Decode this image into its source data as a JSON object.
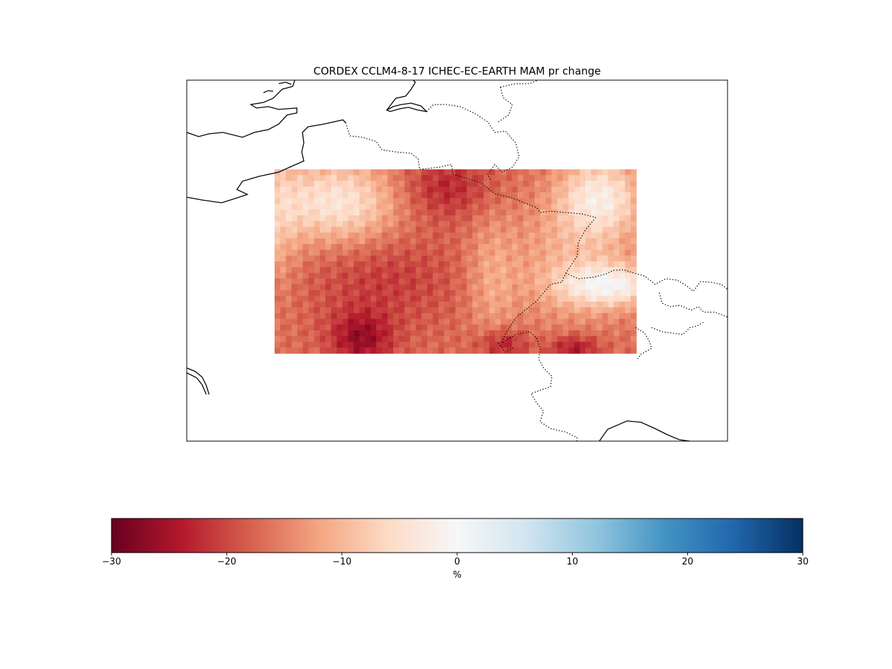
{
  "map": {
    "title": "CORDEX CCLM4-8-17 ICHEC-EC-EARTH MAM pr change",
    "variable": "pr",
    "season": "MAM"
  },
  "colorbar": {
    "label": "%",
    "colormap": "RdBu",
    "vmin": -30,
    "vmax": 30,
    "ticks": [
      {
        "value": -30,
        "label": "−30"
      },
      {
        "value": -20,
        "label": "−20"
      },
      {
        "value": -10,
        "label": "−10"
      },
      {
        "value": 0,
        "label": "0"
      },
      {
        "value": 10,
        "label": "10"
      },
      {
        "value": 20,
        "label": "20"
      },
      {
        "value": 30,
        "label": "30"
      }
    ],
    "colors": {
      "neg_max": "#67001f",
      "neg_mid": "#b2182b",
      "neg_low": "#d6604d",
      "neg_light": "#f4a582",
      "neg_pale": "#fddbc7",
      "zero": "#f7f7f7",
      "pos_pale": "#d1e5f0",
      "pos_light": "#92c5de",
      "pos_low": "#4393c3",
      "pos_mid": "#2166ac",
      "pos_max": "#053061"
    }
  }
}
